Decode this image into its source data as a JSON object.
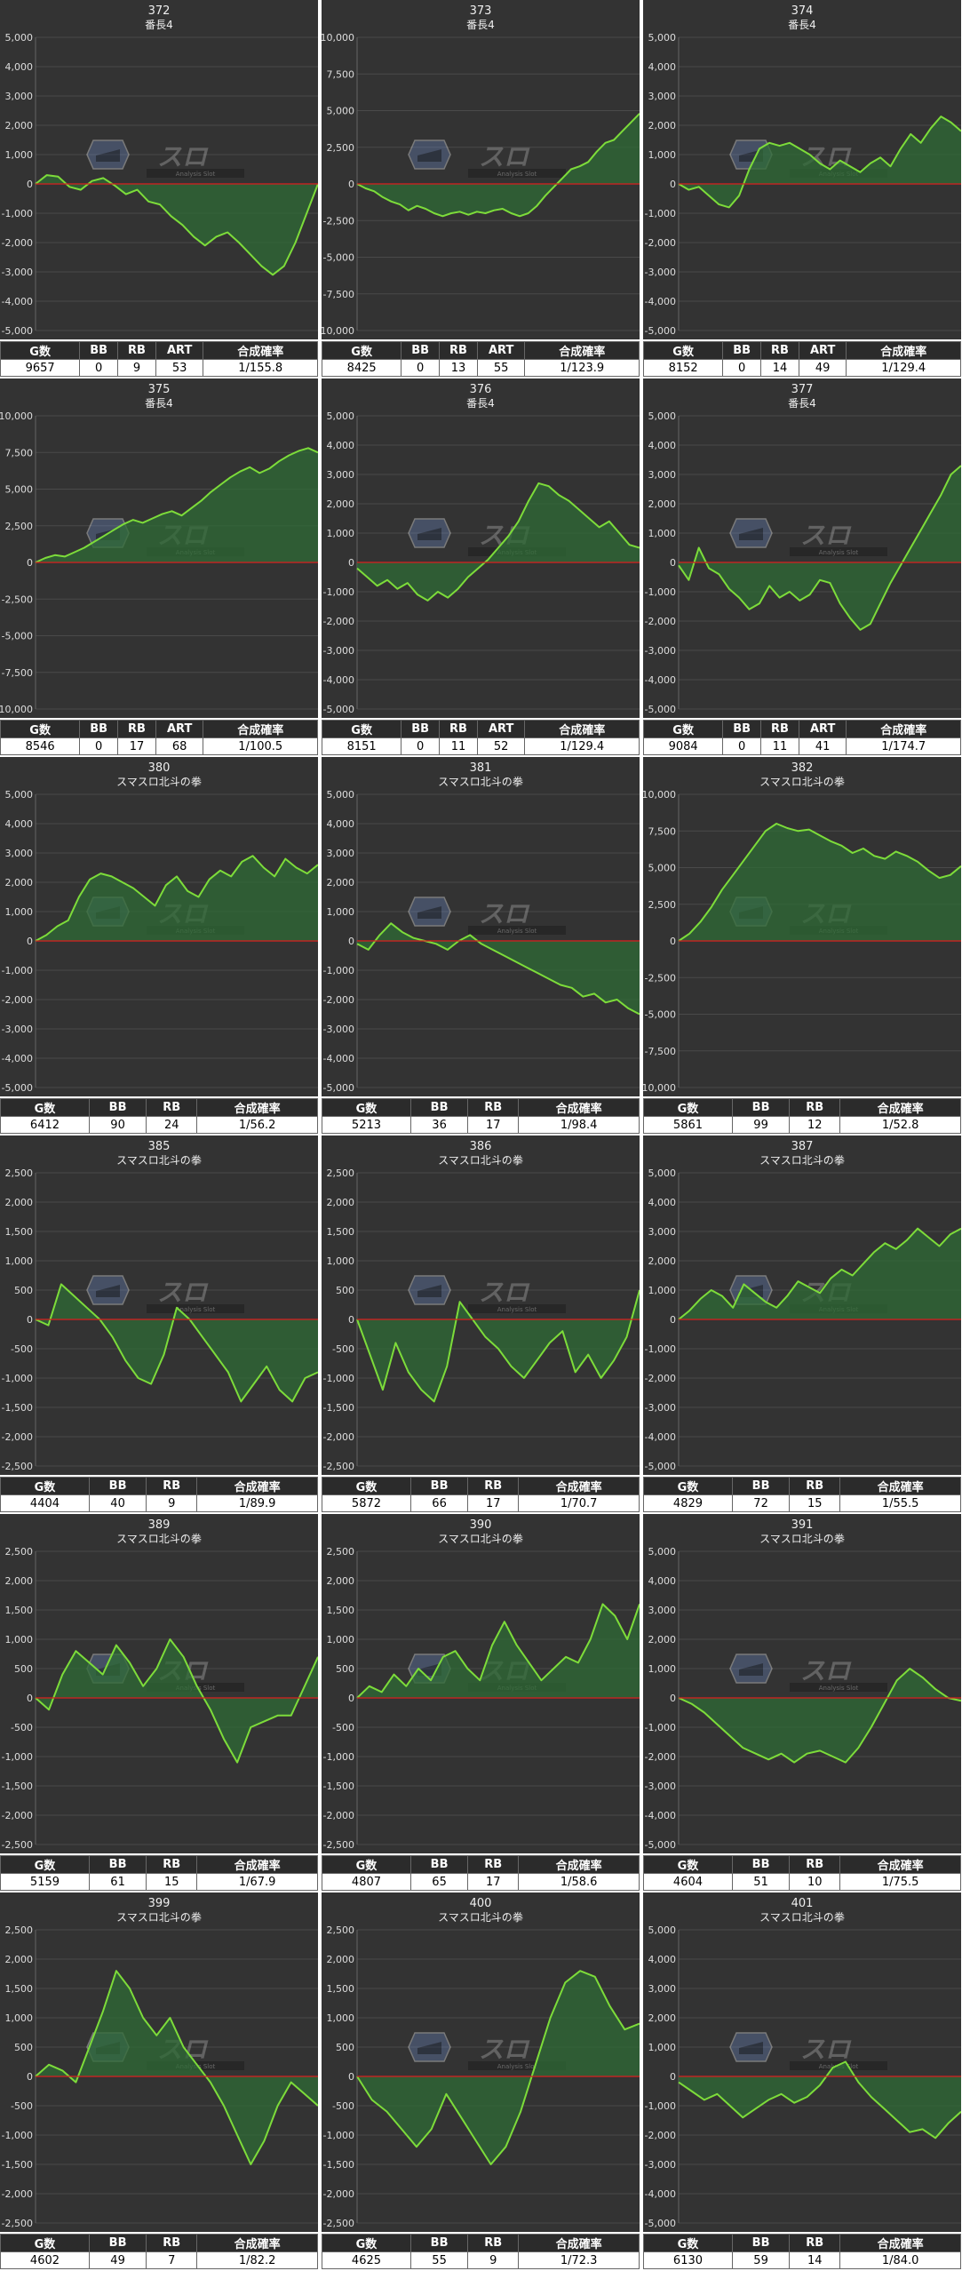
{
  "colors": {
    "background": "#333333",
    "grid": "#4a4a4a",
    "zero_line": "#cc2222",
    "line": "#7ddc3a",
    "fill": "#2f6b35",
    "text": "#eeeeee",
    "header_bg": "#2b2b2b"
  },
  "logo": {
    "jp_text": "スロ",
    "sub_text": "Analysis Slot"
  },
  "machines": [
    {
      "id": "372",
      "name": "番長4",
      "headers": [
        "G数",
        "BB",
        "RB",
        "ART",
        "合成確率"
      ],
      "values": [
        "9657",
        "0",
        "9",
        "53",
        "1/155.8"
      ]
    },
    {
      "id": "373",
      "name": "番長4",
      "headers": [
        "G数",
        "BB",
        "RB",
        "ART",
        "合成確率"
      ],
      "values": [
        "8425",
        "0",
        "13",
        "55",
        "1/123.9"
      ]
    },
    {
      "id": "374",
      "name": "番長4",
      "headers": [
        "G数",
        "BB",
        "RB",
        "ART",
        "合成確率"
      ],
      "values": [
        "8152",
        "0",
        "14",
        "49",
        "1/129.4"
      ]
    },
    {
      "id": "375",
      "name": "番長4",
      "headers": [
        "G数",
        "BB",
        "RB",
        "ART",
        "合成確率"
      ],
      "values": [
        "8546",
        "0",
        "17",
        "68",
        "1/100.5"
      ]
    },
    {
      "id": "376",
      "name": "番長4",
      "headers": [
        "G数",
        "BB",
        "RB",
        "ART",
        "合成確率"
      ],
      "values": [
        "8151",
        "0",
        "11",
        "52",
        "1/129.4"
      ]
    },
    {
      "id": "377",
      "name": "番長4",
      "headers": [
        "G数",
        "BB",
        "RB",
        "ART",
        "合成確率"
      ],
      "values": [
        "9084",
        "0",
        "11",
        "41",
        "1/174.7"
      ]
    },
    {
      "id": "380",
      "name": "スマスロ北斗の拳",
      "headers": [
        "G数",
        "BB",
        "RB",
        "合成確率"
      ],
      "values": [
        "6412",
        "90",
        "24",
        "1/56.2"
      ]
    },
    {
      "id": "381",
      "name": "スマスロ北斗の拳",
      "headers": [
        "G数",
        "BB",
        "RB",
        "合成確率"
      ],
      "values": [
        "5213",
        "36",
        "17",
        "1/98.4"
      ]
    },
    {
      "id": "382",
      "name": "スマスロ北斗の拳",
      "headers": [
        "G数",
        "BB",
        "RB",
        "合成確率"
      ],
      "values": [
        "5861",
        "99",
        "12",
        "1/52.8"
      ]
    },
    {
      "id": "385",
      "name": "スマスロ北斗の拳",
      "headers": [
        "G数",
        "BB",
        "RB",
        "合成確率"
      ],
      "values": [
        "4404",
        "40",
        "9",
        "1/89.9"
      ]
    },
    {
      "id": "386",
      "name": "スマスロ北斗の拳",
      "headers": [
        "G数",
        "BB",
        "RB",
        "合成確率"
      ],
      "values": [
        "5872",
        "66",
        "17",
        "1/70.7"
      ]
    },
    {
      "id": "387",
      "name": "スマスロ北斗の拳",
      "headers": [
        "G数",
        "BB",
        "RB",
        "合成確率"
      ],
      "values": [
        "4829",
        "72",
        "15",
        "1/55.5"
      ]
    },
    {
      "id": "389",
      "name": "スマスロ北斗の拳",
      "headers": [
        "G数",
        "BB",
        "RB",
        "合成確率"
      ],
      "values": [
        "5159",
        "61",
        "15",
        "1/67.9"
      ]
    },
    {
      "id": "390",
      "name": "スマスロ北斗の拳",
      "headers": [
        "G数",
        "BB",
        "RB",
        "合成確率"
      ],
      "values": [
        "4807",
        "65",
        "17",
        "1/58.6"
      ]
    },
    {
      "id": "391",
      "name": "スマスロ北斗の拳",
      "headers": [
        "G数",
        "BB",
        "RB",
        "合成確率"
      ],
      "values": [
        "4604",
        "51",
        "10",
        "1/75.5"
      ]
    },
    {
      "id": "399",
      "name": "スマスロ北斗の拳",
      "headers": [
        "G数",
        "BB",
        "RB",
        "合成確率"
      ],
      "values": [
        "4602",
        "49",
        "7",
        "1/82.2"
      ]
    },
    {
      "id": "400",
      "name": "スマスロ北斗の拳",
      "headers": [
        "G数",
        "BB",
        "RB",
        "合成確率"
      ],
      "values": [
        "4625",
        "55",
        "9",
        "1/72.3"
      ]
    },
    {
      "id": "401",
      "name": "スマスロ北斗の拳",
      "headers": [
        "G数",
        "BB",
        "RB",
        "合成確率"
      ],
      "values": [
        "6130",
        "59",
        "14",
        "1/84.0"
      ]
    }
  ],
  "chart_data": [
    {
      "type": "area",
      "ylim": [
        -5000,
        5000
      ],
      "yticks": [
        "5,000",
        "4,000",
        "3,000",
        "2,000",
        "1,000",
        "0",
        "-1,000",
        "-2,000",
        "-3,000",
        "-4,000",
        "-5,000"
      ],
      "y": [
        0,
        300,
        250,
        -100,
        -200,
        100,
        200,
        -50,
        -350,
        -200,
        -600,
        -700,
        -1100,
        -1400,
        -1800,
        -2100,
        -1800,
        -1650,
        -2000,
        -2400,
        -2800,
        -3100,
        -2800,
        -2000,
        -1000,
        0
      ]
    },
    {
      "type": "area",
      "ylim": [
        -10000,
        10000
      ],
      "yticks": [
        "10,000",
        "7,500",
        "5,000",
        "2,500",
        "0",
        "-2,500",
        "-5,000",
        "-7,500",
        "-10,000"
      ],
      "y": [
        0,
        -300,
        -500,
        -900,
        -1200,
        -1400,
        -1800,
        -1500,
        -1700,
        -2000,
        -2200,
        -2000,
        -1900,
        -2100,
        -1900,
        -2000,
        -1800,
        -1700,
        -2000,
        -2200,
        -2000,
        -1500,
        -800,
        -200,
        400,
        1000,
        1200,
        1500,
        2200,
        2800,
        3000,
        3600,
        4200,
        4800
      ]
    },
    {
      "type": "area",
      "ylim": [
        -5000,
        5000
      ],
      "yticks": [
        "5,000",
        "4,000",
        "3,000",
        "2,000",
        "1,000",
        "0",
        "-1,000",
        "-2,000",
        "-3,000",
        "-4,000",
        "-5,000"
      ],
      "y": [
        0,
        -200,
        -100,
        -400,
        -700,
        -800,
        -400,
        500,
        1200,
        1400,
        1300,
        1400,
        1200,
        1000,
        700,
        500,
        800,
        600,
        400,
        700,
        900,
        600,
        1200,
        1700,
        1400,
        1900,
        2300,
        2100,
        1800
      ]
    },
    {
      "type": "area",
      "ylim": [
        -10000,
        10000
      ],
      "yticks": [
        "10,000",
        "7,500",
        "5,000",
        "2,500",
        "0",
        "-2,500",
        "-5,000",
        "-7,500",
        "-10,000"
      ],
      "y": [
        0,
        300,
        500,
        400,
        700,
        1000,
        1400,
        1800,
        2200,
        2600,
        2900,
        2700,
        3000,
        3300,
        3500,
        3200,
        3700,
        4200,
        4800,
        5300,
        5800,
        6200,
        6500,
        6100,
        6400,
        6900,
        7300,
        7600,
        7800,
        7500
      ]
    },
    {
      "type": "area",
      "ylim": [
        -5000,
        5000
      ],
      "yticks": [
        "5,000",
        "4,000",
        "3,000",
        "2,000",
        "1,000",
        "0",
        "-1,000",
        "-2,000",
        "-3,000",
        "-4,000",
        "-5,000"
      ],
      "y": [
        -200,
        -500,
        -800,
        -600,
        -900,
        -700,
        -1100,
        -1300,
        -1000,
        -1200,
        -900,
        -500,
        -200,
        100,
        500,
        900,
        1400,
        2100,
        2700,
        2600,
        2300,
        2100,
        1800,
        1500,
        1200,
        1400,
        1000,
        600,
        500
      ]
    },
    {
      "type": "area",
      "ylim": [
        -5000,
        5000
      ],
      "yticks": [
        "5,000",
        "4,000",
        "3,000",
        "2,000",
        "1,000",
        "0",
        "-1,000",
        "-2,000",
        "-3,000",
        "-4,000",
        "-5,000"
      ],
      "y": [
        -100,
        -600,
        500,
        -200,
        -400,
        -900,
        -1200,
        -1600,
        -1400,
        -800,
        -1200,
        -1000,
        -1300,
        -1100,
        -600,
        -700,
        -1400,
        -1900,
        -2300,
        -2100,
        -1400,
        -700,
        -100,
        500,
        1100,
        1700,
        2300,
        3000,
        3300
      ]
    },
    {
      "type": "area",
      "ylim": [
        -5000,
        5000
      ],
      "yticks": [
        "5,000",
        "4,000",
        "3,000",
        "2,000",
        "1,000",
        "0",
        "-1,000",
        "-2,000",
        "-3,000",
        "-4,000",
        "-5,000"
      ],
      "y": [
        0,
        200,
        500,
        700,
        1500,
        2100,
        2300,
        2200,
        2000,
        1800,
        1500,
        1200,
        1900,
        2200,
        1700,
        1500,
        2100,
        2400,
        2200,
        2700,
        2900,
        2500,
        2200,
        2800,
        2500,
        2300,
        2600
      ]
    },
    {
      "type": "area",
      "ylim": [
        -5000,
        5000
      ],
      "yticks": [
        "5,000",
        "4,000",
        "3,000",
        "2,000",
        "1,000",
        "0",
        "-1,000",
        "-2,000",
        "-3,000",
        "-4,000",
        "-5,000"
      ],
      "y": [
        -100,
        -300,
        200,
        600,
        300,
        100,
        0,
        -100,
        -300,
        0,
        200,
        -100,
        -300,
        -500,
        -700,
        -900,
        -1100,
        -1300,
        -1500,
        -1600,
        -1900,
        -1800,
        -2100,
        -2000,
        -2300,
        -2500
      ]
    },
    {
      "type": "area",
      "ylim": [
        -10000,
        10000
      ],
      "yticks": [
        "10,000",
        "7,500",
        "5,000",
        "2,500",
        "0",
        "-2,500",
        "-5,000",
        "-7,500",
        "-10,000"
      ],
      "y": [
        0,
        500,
        1300,
        2300,
        3500,
        4500,
        5500,
        6500,
        7500,
        8000,
        7700,
        7500,
        7600,
        7200,
        6800,
        6500,
        6000,
        6300,
        5800,
        5600,
        6100,
        5800,
        5400,
        4800,
        4300,
        4500,
        5100
      ]
    },
    {
      "type": "area",
      "ylim": [
        -2500,
        2500
      ],
      "yticks": [
        "2,500",
        "2,000",
        "1,500",
        "1,000",
        "500",
        "0",
        "-500",
        "-1,000",
        "-1,500",
        "-2,000",
        "-2,500"
      ],
      "y": [
        0,
        -100,
        600,
        400,
        200,
        0,
        -300,
        -700,
        -1000,
        -1100,
        -600,
        200,
        0,
        -300,
        -600,
        -900,
        -1400,
        -1100,
        -800,
        -1200,
        -1400,
        -1000,
        -900
      ]
    },
    {
      "type": "area",
      "ylim": [
        -2500,
        2500
      ],
      "yticks": [
        "2,500",
        "2,000",
        "1,500",
        "1,000",
        "500",
        "0",
        "-500",
        "-1,000",
        "-1,500",
        "-2,000",
        "-2,500"
      ],
      "y": [
        0,
        -600,
        -1200,
        -400,
        -900,
        -1200,
        -1400,
        -800,
        300,
        0,
        -300,
        -500,
        -800,
        -1000,
        -700,
        -400,
        -200,
        -900,
        -600,
        -1000,
        -700,
        -300,
        500
      ]
    },
    {
      "type": "area",
      "ylim": [
        -5000,
        5000
      ],
      "yticks": [
        "5,000",
        "4,000",
        "3,000",
        "2,000",
        "1,000",
        "0",
        "-1,000",
        "-2,000",
        "-3,000",
        "-4,000",
        "-5,000"
      ],
      "y": [
        0,
        300,
        700,
        1000,
        800,
        400,
        1200,
        900,
        600,
        400,
        800,
        1300,
        1100,
        900,
        1400,
        1700,
        1500,
        1900,
        2300,
        2600,
        2400,
        2700,
        3100,
        2800,
        2500,
        2900,
        3100
      ]
    },
    {
      "type": "area",
      "ylim": [
        -2500,
        2500
      ],
      "yticks": [
        "2,500",
        "2,000",
        "1,500",
        "1,000",
        "500",
        "0",
        "-500",
        "-1,000",
        "-1,500",
        "-2,000",
        "-2,500"
      ],
      "y": [
        0,
        -200,
        400,
        800,
        600,
        400,
        900,
        600,
        200,
        500,
        1000,
        700,
        200,
        -200,
        -700,
        -1100,
        -500,
        -400,
        -300,
        -300,
        200,
        700
      ]
    },
    {
      "type": "area",
      "ylim": [
        -2500,
        2500
      ],
      "yticks": [
        "2,500",
        "2,000",
        "1,500",
        "1,000",
        "500",
        "0",
        "-500",
        "-1,000",
        "-1,500",
        "-2,000",
        "-2,500"
      ],
      "y": [
        0,
        200,
        100,
        400,
        200,
        500,
        300,
        700,
        800,
        500,
        300,
        900,
        1300,
        900,
        600,
        300,
        500,
        700,
        600,
        1000,
        1600,
        1400,
        1000,
        1600
      ]
    },
    {
      "type": "area",
      "ylim": [
        -5000,
        5000
      ],
      "yticks": [
        "5,000",
        "4,000",
        "3,000",
        "2,000",
        "1,000",
        "0",
        "-1,000",
        "-2,000",
        "-3,000",
        "-4,000",
        "-5,000"
      ],
      "y": [
        0,
        -200,
        -500,
        -900,
        -1300,
        -1700,
        -1900,
        -2100,
        -1900,
        -2200,
        -1900,
        -1800,
        -2000,
        -2200,
        -1700,
        -1000,
        -200,
        600,
        1000,
        700,
        300,
        0,
        -100
      ]
    },
    {
      "type": "area",
      "ylim": [
        -2500,
        2500
      ],
      "yticks": [
        "2,500",
        "2,000",
        "1,500",
        "1,000",
        "500",
        "0",
        "-500",
        "-1,000",
        "-1,500",
        "-2,000",
        "-2,500"
      ],
      "y": [
        0,
        200,
        100,
        -100,
        500,
        1100,
        1800,
        1500,
        1000,
        700,
        1000,
        500,
        200,
        -100,
        -500,
        -1000,
        -1500,
        -1100,
        -500,
        -100,
        -300,
        -500
      ]
    },
    {
      "type": "area",
      "ylim": [
        -2500,
        2500
      ],
      "yticks": [
        "2,500",
        "2,000",
        "1,500",
        "1,000",
        "500",
        "0",
        "-500",
        "-1,000",
        "-1,500",
        "-2,000",
        "-2,500"
      ],
      "y": [
        0,
        -400,
        -600,
        -900,
        -1200,
        -900,
        -300,
        -700,
        -1100,
        -1500,
        -1200,
        -600,
        200,
        1000,
        1600,
        1800,
        1700,
        1200,
        800,
        900
      ]
    },
    {
      "type": "area",
      "ylim": [
        -5000,
        5000
      ],
      "yticks": [
        "5,000",
        "4,000",
        "3,000",
        "2,000",
        "1,000",
        "0",
        "-1,000",
        "-2,000",
        "-3,000",
        "-4,000",
        "-5,000"
      ],
      "y": [
        -200,
        -500,
        -800,
        -600,
        -1000,
        -1400,
        -1100,
        -800,
        -600,
        -900,
        -700,
        -300,
        300,
        500,
        -200,
        -700,
        -1100,
        -1500,
        -1900,
        -1800,
        -2100,
        -1600,
        -1200
      ]
    }
  ]
}
